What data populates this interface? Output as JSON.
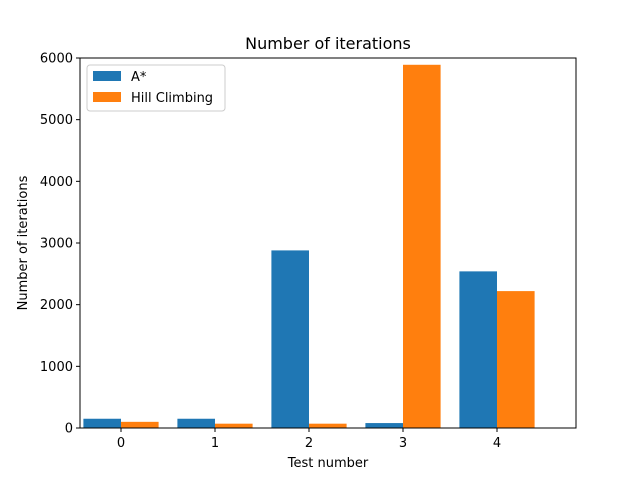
{
  "chart_data": {
    "type": "bar",
    "title": "Number of iterations",
    "xlabel": "Test number",
    "ylabel": "Number of iterations",
    "categories": [
      "0",
      "1",
      "2",
      "3",
      "4"
    ],
    "series": [
      {
        "name": "A*",
        "color": "#1f77b4",
        "values": [
          150,
          150,
          2880,
          80,
          2540
        ]
      },
      {
        "name": "Hill Climbing",
        "color": "#ff7f0e",
        "values": [
          100,
          70,
          70,
          5890,
          2220
        ]
      }
    ],
    "ylim": [
      0,
      6000
    ],
    "yticks": [
      0,
      1000,
      2000,
      3000,
      4000,
      5000,
      6000
    ],
    "grid": false,
    "legend_position": "top-left"
  }
}
